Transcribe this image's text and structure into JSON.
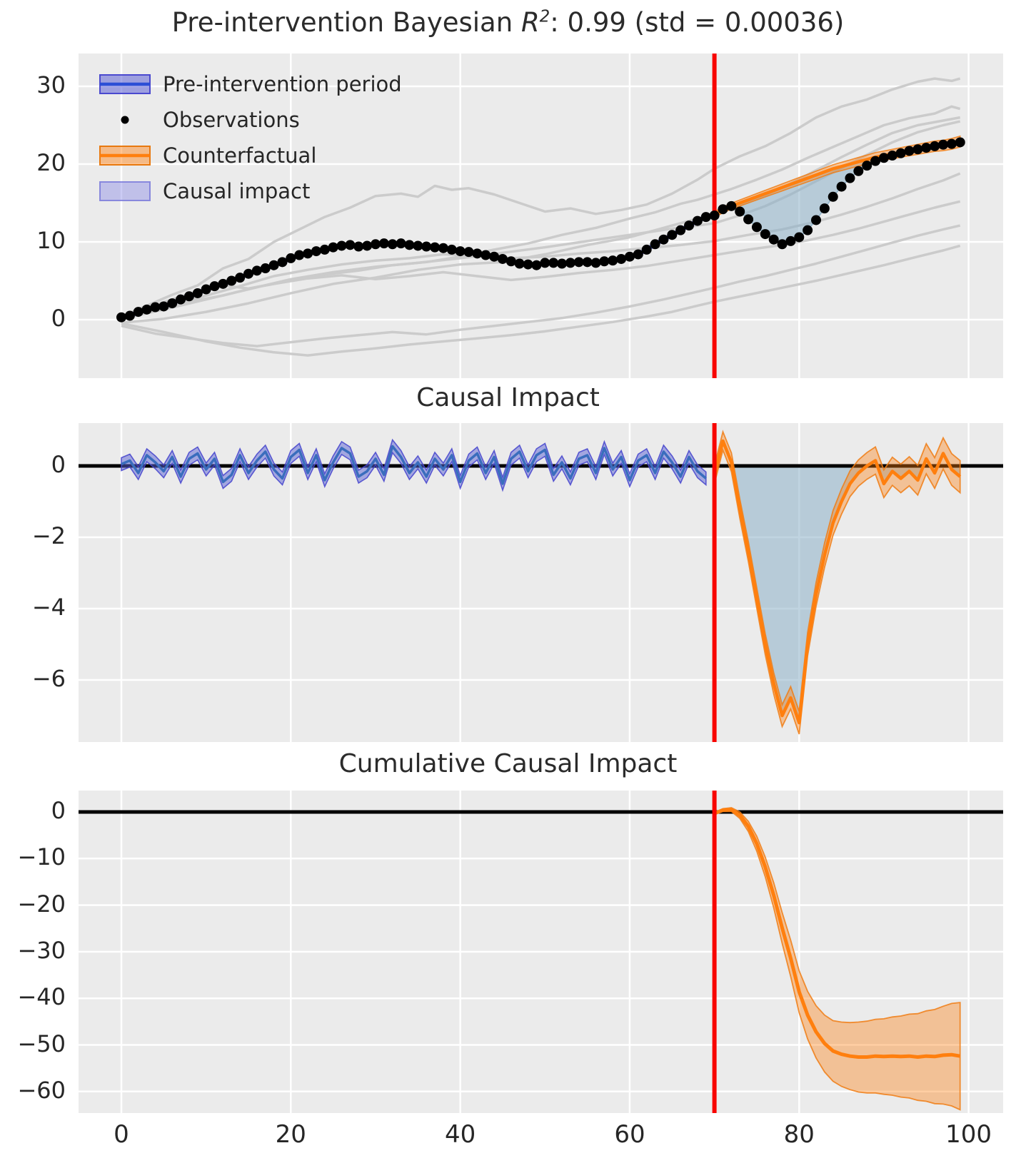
{
  "panel1": {
    "title_prefix": "Pre-intervention Bayesian ",
    "title_math_symbol": "R",
    "title_math_exponent": "2",
    "title_suffix": ": 0.99 (std = 0.00036)"
  },
  "panel2": {
    "title": "Causal Impact"
  },
  "panel3": {
    "title": "Cumulative Causal Impact"
  },
  "legend": {
    "items": [
      {
        "label": "Pre-intervention period",
        "swatch": "band-line",
        "color_key": "blue"
      },
      {
        "label": "Observations",
        "swatch": "dot",
        "color_key": "black"
      },
      {
        "label": "Counterfactual",
        "swatch": "band-line",
        "color_key": "orange"
      },
      {
        "label": "Causal impact",
        "swatch": "patch",
        "color_key": "lightblue"
      }
    ]
  },
  "colors": {
    "axes_bg": "#ebebeb",
    "grid": "#ffffff",
    "text": "#262626",
    "observation": "#000000",
    "model_line": "#3a6dbd",
    "band_blue_fill": "rgba(92,97,214,0.5)",
    "band_blue_edge": "rgba(68,67,204,0.85)",
    "counterfactual": "#ff7f0e",
    "band_orange_fill": "rgba(255,127,14,0.38)",
    "band_orange_edge": "rgba(240,125,20,0.85)",
    "impact_fill": "rgba(141,176,200,0.55)",
    "impact_fill_edge": "rgba(130,170,198,0.85)",
    "control": "#cbcbcb",
    "intervention": "#f80400",
    "zero_line": "#000000",
    "legend_blue_fill": "rgba(92,97,214,0.55)",
    "legend_blue_edge": "#4a49cf",
    "legend_blue_line": "#2c4fd6",
    "legend_orange_fill": "rgba(255,127,14,0.45)",
    "legend_orange_edge": "#e8790f",
    "legend_orange_line": "#ff7f0e",
    "legend_ci_fill": "rgba(140,140,230,0.45)",
    "legend_ci_edge": "rgba(116,116,218,0.8)"
  },
  "chart_data": [
    {
      "type": "line",
      "title": "Pre-intervention Bayesian R^2: 0.99 (std = 0.00036)",
      "xlim": [
        -5,
        104
      ],
      "ylim": [
        -7.5,
        34.2
      ],
      "xticks": [
        0,
        20,
        40,
        60,
        80,
        100
      ],
      "yticks": [
        0,
        10,
        20,
        30
      ],
      "ytick_labels": [
        "0",
        "10",
        "20",
        "30"
      ],
      "intervention_x": 70,
      "observations_pre": [
        0.3,
        0.5,
        1.0,
        1.3,
        1.6,
        1.7,
        2.1,
        2.6,
        3.0,
        3.4,
        3.9,
        4.3,
        4.6,
        5.0,
        5.4,
        5.9,
        6.3,
        6.6,
        7.0,
        7.4,
        7.9,
        8.3,
        8.5,
        8.8,
        9.0,
        9.3,
        9.5,
        9.6,
        9.4,
        9.5,
        9.7,
        9.8,
        9.7,
        9.8,
        9.6,
        9.5,
        9.4,
        9.3,
        9.2,
        9.0,
        8.8,
        8.7,
        8.5,
        8.3,
        8.1,
        7.8,
        7.5,
        7.2,
        7.1,
        7.0,
        7.3,
        7.3,
        7.2,
        7.3,
        7.4,
        7.4,
        7.3,
        7.5,
        7.6,
        7.8,
        8.1,
        8.4,
        9.0,
        9.7,
        10.3,
        10.9,
        11.5,
        12.1,
        12.7,
        13.2
      ],
      "observations_post": [
        13.4,
        14.2,
        14.6,
        13.9,
        12.9,
        11.9,
        11.0,
        10.3,
        9.7,
        10.1,
        10.6,
        11.5,
        12.8,
        14.3,
        15.8,
        17.1,
        18.2,
        19.1,
        19.8,
        20.4,
        20.8,
        21.1,
        21.4,
        21.7,
        21.9,
        22.1,
        22.3,
        22.5,
        22.6,
        22.8
      ],
      "counterfactual": [
        13.5,
        14.1,
        14.6,
        15.0,
        15.4,
        15.8,
        16.2,
        16.6,
        17.0,
        17.4,
        17.8,
        18.2,
        18.6,
        19.0,
        19.4,
        19.7,
        20.0,
        20.3,
        20.6,
        20.9,
        21.1,
        21.3,
        21.5,
        21.7,
        21.9,
        22.1,
        22.3,
        22.4,
        22.6,
        22.9
      ],
      "model_band_halfwidth": 0.25,
      "counterfactual_band_halfwidth_start": 0.35,
      "counterfactual_band_halfwidth_end": 0.7,
      "control_series": [
        {
          "x": [
            0,
            3,
            6,
            9,
            12,
            15,
            18,
            21,
            24,
            27,
            30,
            33,
            35,
            37,
            39,
            41,
            44,
            47,
            50,
            53,
            56,
            59,
            62,
            65,
            68,
            70,
            73,
            76,
            79,
            82,
            85,
            88,
            91,
            94,
            96,
            98,
            99
          ],
          "y": [
            0.4,
            1.8,
            3.2,
            4.4,
            6.6,
            7.8,
            10.0,
            11.6,
            13.2,
            14.4,
            15.9,
            16.2,
            15.8,
            17.2,
            16.7,
            16.9,
            16.1,
            15.0,
            13.9,
            14.3,
            13.6,
            14.1,
            14.8,
            16.2,
            18.0,
            19.4,
            21.0,
            22.3,
            24.0,
            26.0,
            27.4,
            28.3,
            29.6,
            30.6,
            31.0,
            30.7,
            31.0
          ]
        },
        {
          "x": [
            0,
            4,
            8,
            12,
            16,
            20,
            24,
            28,
            32,
            36,
            40,
            44,
            48,
            52,
            56,
            60,
            63,
            66,
            68,
            70,
            72,
            75,
            78,
            81,
            84,
            87,
            90,
            93,
            96,
            98,
            99
          ],
          "y": [
            0.2,
            1.2,
            2.3,
            3.1,
            4.2,
            5.0,
            5.8,
            6.3,
            7.0,
            7.4,
            8.1,
            9.0,
            9.8,
            10.9,
            11.8,
            13.0,
            13.8,
            14.9,
            15.4,
            16.1,
            16.8,
            18.0,
            19.3,
            20.8,
            22.2,
            23.6,
            25.0,
            25.9,
            26.5,
            27.4,
            27.1
          ]
        },
        {
          "x": [
            0,
            5,
            10,
            15,
            20,
            25,
            30,
            35,
            40,
            45,
            50,
            55,
            60,
            65,
            68,
            70,
            73,
            76,
            79,
            82,
            85,
            88,
            91,
            94,
            97,
            99
          ],
          "y": [
            -0.4,
            0.1,
            1.0,
            2.1,
            3.4,
            4.6,
            5.4,
            6.4,
            7.1,
            7.4,
            8.4,
            9.6,
            10.6,
            12.1,
            13.0,
            13.6,
            14.8,
            16.0,
            17.5,
            19.2,
            20.9,
            22.5,
            24.0,
            25.0,
            25.6,
            26.0
          ]
        },
        {
          "x": [
            0,
            5,
            10,
            14,
            18,
            22,
            26,
            30,
            34,
            38,
            42,
            46,
            50,
            54,
            58,
            62,
            66,
            70,
            74,
            78,
            82,
            85,
            88,
            91,
            94,
            97,
            99
          ],
          "y": [
            0.3,
            1.6,
            3.1,
            4.3,
            5.6,
            6.4,
            7.1,
            7.6,
            7.9,
            8.4,
            8.2,
            7.9,
            8.1,
            8.5,
            8.8,
            9.2,
            9.6,
            10.1,
            10.9,
            11.6,
            12.6,
            13.5,
            14.5,
            15.6,
            16.8,
            17.9,
            18.8
          ]
        },
        {
          "x": [
            0,
            4,
            8,
            12,
            15,
            18,
            22,
            26,
            30,
            34,
            38,
            42,
            46,
            50,
            54,
            58,
            62,
            66,
            70,
            74,
            78,
            81,
            84,
            87,
            90,
            93,
            96,
            99
          ],
          "y": [
            0.5,
            1.9,
            3.3,
            4.4,
            4.0,
            4.6,
            5.3,
            5.7,
            5.2,
            5.6,
            6.1,
            5.6,
            5.1,
            5.5,
            6.0,
            6.4,
            6.9,
            7.6,
            8.3,
            9.0,
            9.6,
            10.2,
            10.9,
            11.7,
            12.6,
            13.5,
            14.4,
            15.2
          ]
        },
        {
          "x": [
            0,
            4,
            8,
            12,
            16,
            20,
            24,
            28,
            32,
            36,
            40,
            44,
            48,
            52,
            56,
            60,
            64,
            68,
            70,
            73,
            76,
            79,
            82,
            85,
            88,
            91,
            94,
            97,
            99
          ],
          "y": [
            -0.8,
            -1.8,
            -2.4,
            -3.0,
            -3.4,
            -2.9,
            -2.4,
            -2.0,
            -1.6,
            -1.9,
            -1.3,
            -0.8,
            -0.3,
            0.2,
            0.9,
            1.7,
            2.6,
            3.6,
            4.1,
            4.9,
            5.6,
            6.4,
            7.2,
            8.1,
            9.0,
            9.9,
            10.8,
            11.6,
            12.1
          ]
        },
        {
          "x": [
            0,
            5,
            10,
            14,
            18,
            22,
            26,
            30,
            34,
            38,
            42,
            46,
            50,
            54,
            58,
            62,
            65,
            68,
            70,
            74,
            78,
            82,
            86,
            90,
            94,
            97,
            99
          ],
          "y": [
            -0.5,
            -1.6,
            -2.8,
            -3.6,
            -4.2,
            -4.6,
            -4.1,
            -3.7,
            -3.2,
            -2.8,
            -2.4,
            -2.0,
            -1.5,
            -0.9,
            -0.3,
            0.4,
            1.0,
            1.8,
            2.3,
            3.2,
            4.1,
            5.0,
            6.0,
            7.0,
            8.1,
            8.9,
            9.5
          ]
        },
        {
          "x": [
            0,
            5,
            10,
            15,
            20,
            25,
            30,
            35,
            40,
            45,
            50,
            55,
            60,
            65,
            68,
            70,
            73,
            76,
            79,
            82,
            85,
            88,
            91,
            94,
            97,
            99
          ],
          "y": [
            0.1,
            1.3,
            2.6,
            3.9,
            5.2,
            6.1,
            6.8,
            7.3,
            7.9,
            8.6,
            9.3,
            10.1,
            10.9,
            11.7,
            12.1,
            12.4,
            13.4,
            14.6,
            16.1,
            17.8,
            19.5,
            21.2,
            22.8,
            24.1,
            25.0,
            25.5
          ]
        }
      ]
    },
    {
      "type": "area",
      "title": "Causal Impact",
      "xlim": [
        -5,
        104
      ],
      "ylim": [
        -7.74,
        1.2
      ],
      "yticks": [
        0,
        -2,
        -4,
        -6
      ],
      "ytick_labels": [
        "0",
        "−2",
        "−4",
        "−6"
      ],
      "intervention_x": 70,
      "impact_pre": [
        0.05,
        0.15,
        -0.2,
        0.3,
        0.1,
        -0.15,
        0.25,
        -0.3,
        0.2,
        0.35,
        -0.1,
        0.2,
        -0.45,
        -0.25,
        0.3,
        -0.2,
        0.15,
        0.4,
        -0.1,
        -0.35,
        0.25,
        0.45,
        -0.2,
        0.3,
        -0.4,
        0.1,
        0.5,
        0.35,
        -0.3,
        -0.15,
        0.2,
        -0.25,
        0.55,
        0.25,
        -0.2,
        0.1,
        -0.3,
        0.2,
        -0.1,
        0.3,
        -0.45,
        0.15,
        0.35,
        -0.2,
        0.25,
        -0.5,
        0.2,
        0.4,
        -0.15,
        0.3,
        0.45,
        -0.25,
        0.1,
        -0.35,
        0.2,
        0.3,
        -0.2,
        0.5,
        -0.1,
        0.25,
        -0.4,
        0.15,
        0.3,
        -0.2,
        0.4,
        0.1,
        -0.3,
        0.25,
        -0.15,
        -0.35
      ],
      "impact_post": [
        -0.25,
        0.7,
        0.1,
        -1.2,
        -2.4,
        -3.7,
        -5.0,
        -6.1,
        -7.0,
        -6.5,
        -7.2,
        -5.0,
        -3.6,
        -2.5,
        -1.6,
        -1.0,
        -0.5,
        -0.2,
        0.0,
        0.15,
        -0.5,
        -0.15,
        -0.35,
        -0.15,
        -0.4,
        0.2,
        -0.2,
        0.35,
        -0.1,
        -0.3
      ],
      "band_halfwidth_pre": 0.18,
      "band_halfwidth_post_start": 0.25,
      "band_halfwidth_post_end": 0.45
    },
    {
      "type": "line",
      "title": "Cumulative Causal Impact",
      "xlim": [
        -5,
        104
      ],
      "ylim": [
        -64.6,
        6.3
      ],
      "yticks": [
        0,
        -10,
        -20,
        -30,
        -40,
        -50,
        -60
      ],
      "ytick_labels": [
        "0",
        "−10",
        "−20",
        "−30",
        "−40",
        "−50",
        "−60"
      ],
      "xticks": [
        0,
        20,
        40,
        60,
        80,
        100
      ],
      "xtick_labels": [
        "0",
        "20",
        "40",
        "60",
        "80",
        "100"
      ],
      "intervention_x": 70,
      "cumulative": [
        -0.3,
        0.4,
        0.5,
        -0.7,
        -3.1,
        -6.8,
        -11.8,
        -17.9,
        -24.9,
        -31.4,
        -38.6,
        -43.6,
        -47.2,
        -49.7,
        -51.3,
        -52.0,
        -52.4,
        -52.6,
        -52.6,
        -52.4,
        -52.5,
        -52.4,
        -52.5,
        -52.4,
        -52.6,
        -52.4,
        -52.5,
        -52.2,
        -52.1,
        -52.4
      ],
      "band_halfwidth": [
        0.2,
        0.3,
        0.4,
        0.7,
        1.1,
        1.6,
        2.1,
        2.7,
        3.3,
        3.9,
        4.5,
        5.1,
        5.6,
        6.1,
        6.5,
        6.9,
        7.2,
        7.5,
        7.7,
        7.9,
        8.1,
        8.4,
        8.7,
        9.0,
        9.3,
        9.7,
        10.1,
        10.5,
        11.0,
        11.5
      ]
    }
  ]
}
